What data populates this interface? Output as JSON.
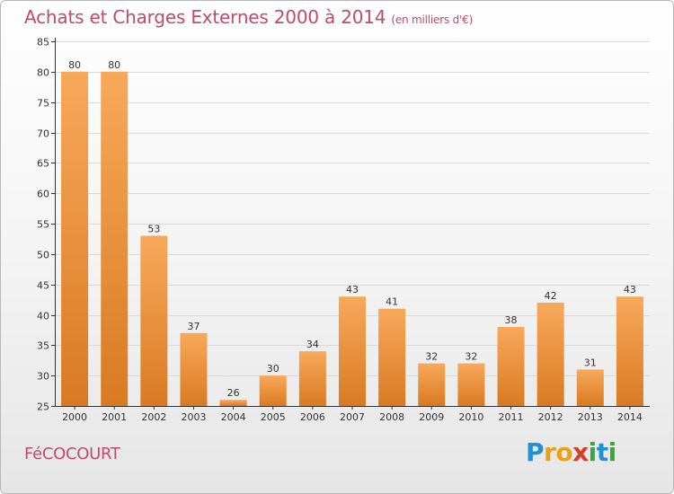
{
  "header": {
    "title": "Achats et Charges Externes 2000 à 2014",
    "unit": "(en milliers d'€)"
  },
  "footer": {
    "commune": "FéCOCOURT",
    "logo_letters": [
      "P",
      "r",
      "o",
      "x",
      "i",
      "t",
      "i"
    ],
    "logo_colors": [
      "#1f8fd6",
      "#e8a21a",
      "#e8a21a",
      "#d93a2a",
      "#39a83a",
      "#1f8fd6",
      "#39a83a"
    ]
  },
  "colors": {
    "bar_top": "#f7a95a",
    "bar_bottom": "#d97a22",
    "title": "#c24a6a"
  },
  "chart_data": {
    "type": "bar",
    "title": "Achats et Charges Externes 2000 à 2014",
    "subtitle": "(en milliers d'€)",
    "xlabel": "",
    "ylabel": "",
    "ylim": [
      25,
      85
    ],
    "yticks": [
      25,
      30,
      35,
      40,
      45,
      50,
      55,
      60,
      65,
      70,
      75,
      80,
      85
    ],
    "grid": true,
    "categories": [
      "2000",
      "2001",
      "2002",
      "2003",
      "2004",
      "2005",
      "2006",
      "2007",
      "2008",
      "2009",
      "2010",
      "2011",
      "2012",
      "2013",
      "2014"
    ],
    "values": [
      80,
      80,
      53,
      37,
      26,
      30,
      34,
      43,
      41,
      32,
      32,
      38,
      42,
      31,
      43
    ]
  }
}
